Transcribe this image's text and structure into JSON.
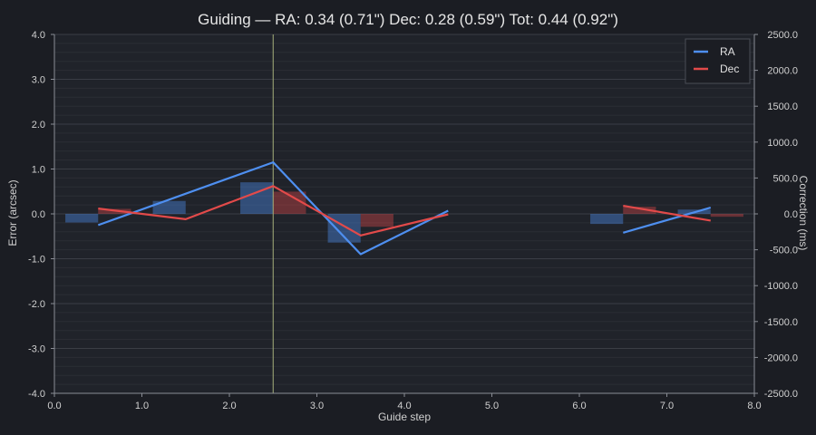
{
  "chart_data": {
    "type": "line",
    "title": "Guiding  —  RA: 0.34 (0.71\")  Dec: 0.28 (0.59\")  Tot: 0.44 (0.92\")",
    "xlabel": "Guide step",
    "ylabel": "Error (arcsec)",
    "y2label": "Correction (ms)",
    "xlim": [
      0,
      8
    ],
    "ylim": [
      -4,
      4
    ],
    "y2lim": [
      -2500,
      2500
    ],
    "xticks": [
      "0.0",
      "1.0",
      "2.0",
      "3.0",
      "4.0",
      "5.0",
      "6.0",
      "7.0",
      "8.0"
    ],
    "yticks": [
      "-4.0",
      "-3.0",
      "-2.0",
      "-1.0",
      "0.0",
      "1.0",
      "2.0",
      "3.0",
      "4.0"
    ],
    "y2ticks": [
      "-2500.0",
      "-2000.0",
      "-1500.0",
      "-1000.0",
      "-500.0",
      "0.0",
      "500.0",
      "1000.0",
      "1500.0",
      "2000.0",
      "2500.0"
    ],
    "cursor_x": 2.5,
    "legend_position": "top-right",
    "series": [
      {
        "name": "RA",
        "color": "#4e8ff0",
        "segments": [
          [
            [
              0.5,
              -0.25
            ],
            [
              2.5,
              1.15
            ],
            [
              3.5,
              -0.9
            ],
            [
              4.5,
              0.07
            ]
          ],
          [
            [
              6.5,
              -0.42
            ],
            [
              7.5,
              0.14
            ]
          ]
        ],
        "corrections": [
          {
            "x0": 0.125,
            "x1": 0.5,
            "value": -120
          },
          {
            "x0": 1.125,
            "x1": 1.5,
            "value": 180
          },
          {
            "x0": 2.125,
            "x1": 2.5,
            "value": 440
          },
          {
            "x0": 3.125,
            "x1": 3.5,
            "value": -400
          },
          {
            "x0": 6.125,
            "x1": 6.5,
            "value": -140
          },
          {
            "x0": 7.125,
            "x1": 7.5,
            "value": 60
          }
        ]
      },
      {
        "name": "Dec",
        "color": "#e24a4a",
        "segments": [
          [
            [
              0.5,
              0.12
            ],
            [
              1.5,
              -0.12
            ],
            [
              2.5,
              0.62
            ],
            [
              3.5,
              -0.48
            ],
            [
              4.5,
              -0.01
            ]
          ],
          [
            [
              6.5,
              0.18
            ],
            [
              7.5,
              -0.15
            ]
          ]
        ],
        "corrections": [
          {
            "x0": 0.5,
            "x1": 0.875,
            "value": 70
          },
          {
            "x0": 2.5,
            "x1": 2.875,
            "value": 310
          },
          {
            "x0": 3.5,
            "x1": 3.875,
            "value": -180
          },
          {
            "x0": 6.5,
            "x1": 6.875,
            "value": 100
          },
          {
            "x0": 7.5,
            "x1": 7.875,
            "value": -40
          }
        ]
      }
    ]
  }
}
